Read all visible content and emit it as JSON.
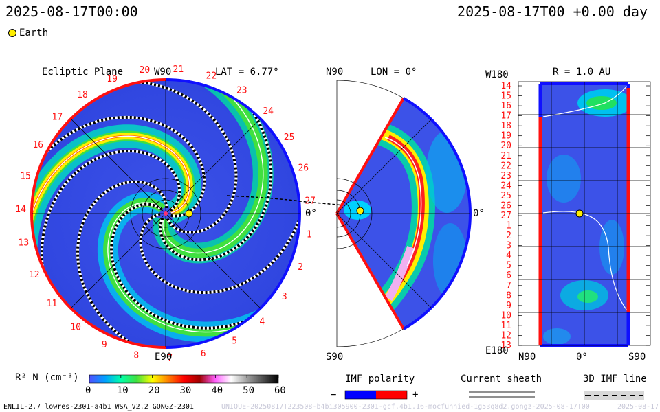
{
  "header": {
    "left_timestamp": "2025-08-17T00:00",
    "right_timestamp": "2025-08-17T00 +0.00 day"
  },
  "legend": {
    "earth_label": "Earth",
    "earth_color": "#ffee00"
  },
  "panels": {
    "ecliptic": {
      "title": "Ecliptic Plane",
      "top_label": "W90",
      "lat_label": "LAT = 6.77°",
      "right_label": "0°",
      "bottom_label": "E90",
      "sector_numbers": [
        "18",
        "19",
        "20",
        "21",
        "22",
        "23",
        "24",
        "25",
        "26",
        "27",
        "1",
        "2",
        "3",
        "4",
        "5",
        "6",
        "7",
        "8",
        "9",
        "10",
        "11",
        "12",
        "13",
        "14",
        "15",
        "16",
        "17"
      ]
    },
    "meridional": {
      "top_label": "N90",
      "lon_label": "LON = 0°",
      "right_label": "0°",
      "bottom_label": "S90"
    },
    "radial": {
      "top_left_label": "W180",
      "r_label": "R = 1.0 AU",
      "bottom_left_label": "E180",
      "x_tick_labels": [
        "N90",
        "0°",
        "S90"
      ],
      "y_tick_labels": [
        "14",
        "15",
        "16",
        "17",
        "18",
        "19",
        "20",
        "21",
        "22",
        "23",
        "24",
        "25",
        "26",
        "27",
        "1",
        "2",
        "3",
        "4",
        "5",
        "6",
        "7",
        "8",
        "9",
        "10",
        "11",
        "12",
        "13"
      ]
    }
  },
  "colorbar": {
    "label": "R² N (cm⁻³)",
    "ticks": [
      "0",
      "10",
      "20",
      "30",
      "40",
      "50",
      "60"
    ],
    "range": [
      0,
      60
    ],
    "colors": [
      "#5050ff",
      "#00a0ff",
      "#00ffaa",
      "#40e040",
      "#ffff00",
      "#ff8000",
      "#ff0000",
      "#a00000",
      "#ff60ff",
      "#ffffff",
      "#a0a0a0",
      "#505050",
      "#000000"
    ]
  },
  "imf_polarity": {
    "title": "IMF polarity",
    "minus": "−",
    "plus": "+",
    "neg_color": "#0000ff",
    "pos_color": "#ff0000"
  },
  "current_sheath": {
    "title": "Current sheath"
  },
  "imf_line": {
    "title": "3D IMF line"
  },
  "footer": {
    "model_info": "ENLIL-2.7 lowres-2301-a4b1 WSA_V2.2 GONGZ-2301",
    "run_id": "UNIQUE-20250817T223508-b4bi305900-2301-gcf.4b1.16-mocfunnied-1g53q8d2.gongz-2025-08-17T00",
    "date": "2025-08-17"
  },
  "chart_data": {
    "type": "heatmap",
    "title": "",
    "earth_position": {
      "ecliptic_radius_au": 1.0,
      "longitude_deg": 0,
      "latitude_deg": 6.77
    },
    "color_scale": {
      "quantity": "R² N (cm⁻³)",
      "min": 0,
      "max": 60
    },
    "panels": [
      "Ecliptic Plane",
      "LON = 0°",
      "R = 1.0 AU"
    ]
  }
}
